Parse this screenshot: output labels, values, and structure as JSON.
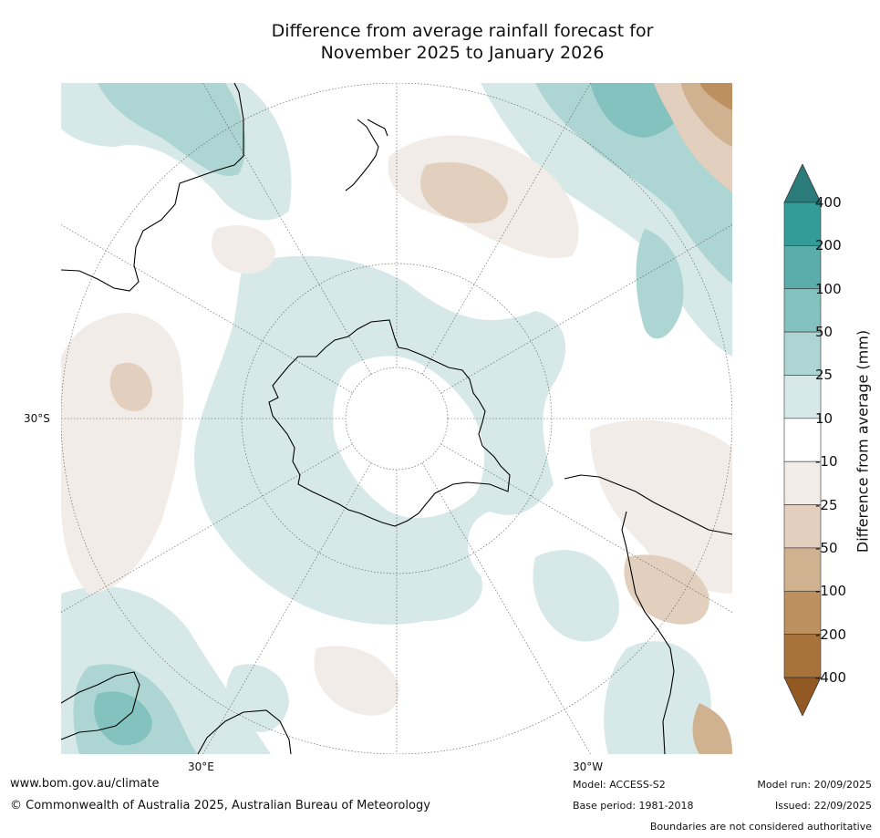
{
  "title": {
    "line1": "Difference from average rainfall forecast for",
    "line2": "November 2025 to January 2026"
  },
  "map": {
    "projection": "south-polar-stereographic",
    "labels": {
      "lat_left": "30°S",
      "lon_bottom_left": "30°E",
      "lon_bottom_right": "30°W"
    }
  },
  "legend": {
    "title": "Difference from average (mm)",
    "ticks": [
      "400",
      "200",
      "100",
      "50",
      "25",
      "10",
      "-10",
      "-25",
      "-50",
      "-100",
      "-200",
      "-400"
    ],
    "colors": [
      "#2b7b7a",
      "#339b98",
      "#5aadaa",
      "#84c2bf",
      "#add5d3",
      "#d6e9e8",
      "#ffffff",
      "#f1ece7",
      "#e2cfbe",
      "#d0b190",
      "#bc915f",
      "#a8733a",
      "#925a22"
    ]
  },
  "colors": {
    "coast": "#000000",
    "grid": "#555555",
    "wet_light": "#d6e9e8",
    "wet_mid": "#add5d3",
    "wet_strong": "#84c2bf",
    "dry_light": "#f1ece7",
    "dry_mid": "#e2cfbe",
    "dry_strong": "#d0b190",
    "dry_vstrong": "#bc915f"
  },
  "footer": {
    "website": "www.bom.gov.au/climate",
    "copyright": "© Commonwealth of Australia 2025, Australian Bureau of Meteorology",
    "model": "Model: ACCESS-S2",
    "base_period": "Base period: 1981-2018",
    "model_run": "Model run: 20/09/2025",
    "issued": "Issued: 22/09/2025",
    "boundaries": "Boundaries are not considered authoritative"
  }
}
